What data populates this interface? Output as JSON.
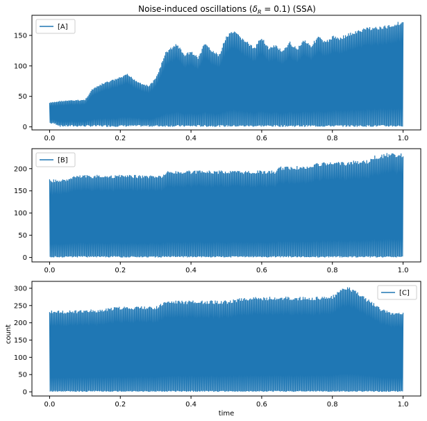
{
  "figure": {
    "title": "Noise-induced oscillations (δ_R = 0.1) (SSA)",
    "title_parts": {
      "prefix": "Noise-induced oscillations (",
      "delta": "δ",
      "subscript": "R",
      "suffix": " = 0.1) (SSA)"
    },
    "xlabel": "time"
  },
  "colors": {
    "series": "#1f77b4",
    "axes": "#000000",
    "background": "#ffffff"
  },
  "chart_data": [
    {
      "type": "line",
      "series": [
        {
          "name": "[A]"
        }
      ],
      "legend_position": "upper-left",
      "xlim": [
        -0.05,
        1.05
      ],
      "ylim": [
        -5,
        183
      ],
      "xticks": [
        0.0,
        0.2,
        0.4,
        0.6,
        0.8,
        1.0
      ],
      "xtick_labels": [
        "0.0",
        "0.2",
        "0.4",
        "0.6",
        "0.8",
        "1.0"
      ],
      "yticks": [
        0,
        50,
        100,
        150
      ],
      "ytick_labels": [
        "0",
        "50",
        "100",
        "150"
      ],
      "ylabel": "",
      "grid": false,
      "envelope": {
        "x": [
          0.0,
          0.02,
          0.03,
          0.1,
          0.12,
          0.15,
          0.2,
          0.22,
          0.25,
          0.28,
          0.3,
          0.33,
          0.36,
          0.38,
          0.4,
          0.42,
          0.44,
          0.46,
          0.48,
          0.5,
          0.52,
          0.55,
          0.58,
          0.6,
          0.62,
          0.64,
          0.66,
          0.68,
          0.7,
          0.72,
          0.74,
          0.76,
          0.78,
          0.8,
          0.82,
          0.85,
          0.88,
          0.9,
          0.92,
          0.94,
          0.96,
          0.98,
          1.0
        ],
        "max": [
          40,
          42,
          43,
          45,
          62,
          72,
          82,
          87,
          75,
          68,
          80,
          125,
          138,
          120,
          125,
          115,
          140,
          125,
          120,
          150,
          158,
          145,
          130,
          150,
          130,
          135,
          125,
          140,
          130,
          145,
          135,
          150,
          140,
          150,
          148,
          155,
          160,
          165,
          165,
          165,
          168,
          172,
          175
        ],
        "min": [
          5,
          3,
          0,
          0,
          0,
          0,
          0,
          0,
          0,
          0,
          0,
          0,
          0,
          0,
          0,
          0,
          0,
          0,
          0,
          0,
          0,
          0,
          0,
          0,
          0,
          0,
          0,
          0,
          0,
          0,
          0,
          0,
          0,
          0,
          0,
          0,
          0,
          0,
          0,
          0,
          0,
          0,
          0
        ]
      }
    },
    {
      "type": "line",
      "series": [
        {
          "name": "[B]"
        }
      ],
      "legend_position": "upper-left",
      "xlim": [
        -0.05,
        1.05
      ],
      "ylim": [
        -10,
        245
      ],
      "xticks": [
        0.0,
        0.2,
        0.4,
        0.6,
        0.8,
        1.0
      ],
      "xtick_labels": [
        "0.0",
        "0.2",
        "0.4",
        "0.6",
        "0.8",
        "1.0"
      ],
      "yticks": [
        0,
        50,
        100,
        150,
        200
      ],
      "ytick_labels": [
        "0",
        "50",
        "100",
        "150",
        "200"
      ],
      "ylabel": "",
      "grid": false,
      "envelope": {
        "x": [
          0.0,
          0.05,
          0.06,
          0.1,
          0.2,
          0.3,
          0.32,
          0.33,
          0.4,
          0.5,
          0.6,
          0.64,
          0.65,
          0.7,
          0.74,
          0.75,
          0.8,
          0.84,
          0.85,
          0.9,
          0.92,
          0.94,
          0.95,
          1.0
        ],
        "max": [
          176,
          176,
          184,
          186,
          186,
          186,
          186,
          195,
          196,
          196,
          196,
          196,
          205,
          206,
          206,
          214,
          215,
          215,
          218,
          220,
          230,
          232,
          235,
          235
        ],
        "min": [
          0,
          0,
          0,
          0,
          0,
          0,
          0,
          0,
          0,
          0,
          0,
          0,
          0,
          0,
          0,
          0,
          0,
          0,
          0,
          0,
          0,
          0,
          0,
          0
        ]
      }
    },
    {
      "type": "line",
      "series": [
        {
          "name": "[C]"
        }
      ],
      "legend_position": "upper-right",
      "xlim": [
        -0.05,
        1.05
      ],
      "ylim": [
        -12,
        320
      ],
      "xticks": [
        0.0,
        0.2,
        0.4,
        0.6,
        0.8,
        1.0
      ],
      "xtick_labels": [
        "0.0",
        "0.2",
        "0.4",
        "0.6",
        "0.8",
        "1.0"
      ],
      "yticks": [
        0,
        50,
        100,
        150,
        200,
        250,
        300
      ],
      "ytick_labels": [
        "0",
        "50",
        "100",
        "150",
        "200",
        "250",
        "300"
      ],
      "ylabel": "count",
      "grid": false,
      "envelope": {
        "x": [
          0.0,
          0.05,
          0.1,
          0.15,
          0.18,
          0.2,
          0.3,
          0.32,
          0.33,
          0.4,
          0.5,
          0.52,
          0.55,
          0.6,
          0.7,
          0.78,
          0.8,
          0.82,
          0.84,
          0.86,
          0.88,
          0.9,
          0.92,
          0.94,
          0.96,
          0.98,
          1.0
        ],
        "max": [
          236,
          236,
          238,
          240,
          245,
          247,
          248,
          258,
          264,
          265,
          265,
          268,
          275,
          276,
          276,
          276,
          280,
          295,
          305,
          300,
          285,
          270,
          255,
          240,
          235,
          228,
          230
        ],
        "min": [
          0,
          0,
          0,
          0,
          0,
          0,
          0,
          0,
          0,
          0,
          0,
          0,
          0,
          0,
          0,
          0,
          0,
          0,
          0,
          0,
          0,
          0,
          0,
          0,
          0,
          0,
          0
        ]
      }
    }
  ]
}
